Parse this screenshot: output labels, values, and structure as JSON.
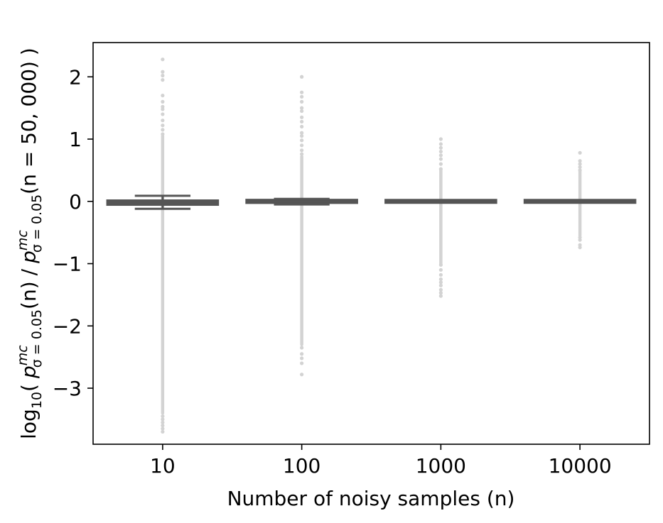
{
  "chart_data": {
    "type": "boxplot",
    "xlabel": "Number of noisy samples (n)",
    "ylabel": "log10( p^mc_{σ=0.05}(n) / p^mc_{σ=0.05}(n = 50, 000) )",
    "ylabel_parts": {
      "log": "log",
      "log_sub": "10",
      "open": "(",
      "p": "p",
      "p_sup": "mc",
      "p_sub": "σ = 0.05",
      "n_arg": "(n)",
      "slash": "/",
      "ref_arg": "(n = 50, 000)",
      "close": ")"
    },
    "categories": [
      "10",
      "100",
      "1000",
      "10000"
    ],
    "ylim": [
      -3.9,
      2.55
    ],
    "yticks": [
      2,
      1,
      0,
      -1,
      -2,
      -3
    ],
    "ytick_labels": [
      "2",
      "1",
      "0",
      "−1",
      "−2",
      "−3"
    ],
    "grid": false,
    "colors": {
      "box": "#555555",
      "outlier": "#d3d3d3",
      "axis": "#000000"
    },
    "boxes": [
      {
        "category": "10",
        "q1": -0.06,
        "median": -0.02,
        "q3": 0.02,
        "whisker_low": -0.12,
        "whisker_high": 0.09,
        "outlier_min": -3.7,
        "outlier_max": 2.28
      },
      {
        "category": "100",
        "q1": -0.03,
        "median": 0.0,
        "q3": 0.03,
        "whisker_low": -0.05,
        "whisker_high": 0.04,
        "outlier_min": -2.78,
        "outlier_max": 2.0
      },
      {
        "category": "1000",
        "q1": -0.01,
        "median": 0.0,
        "q3": 0.01,
        "whisker_low": -0.02,
        "whisker_high": 0.02,
        "outlier_min": -1.52,
        "outlier_max": 1.0
      },
      {
        "category": "10000",
        "q1": -0.005,
        "median": 0.0,
        "q3": 0.005,
        "whisker_low": -0.01,
        "whisker_high": 0.01,
        "outlier_min": -0.74,
        "outlier_max": 0.78
      }
    ],
    "outlier_points": [
      [
        2.28,
        2.08,
        2.02,
        1.95,
        1.7,
        1.6,
        1.52,
        1.48,
        1.4,
        1.3,
        1.22,
        1.15,
        1.08,
        -3.45,
        -3.5,
        -3.55,
        -3.6,
        -3.65,
        -3.7
      ],
      [
        2.0,
        1.75,
        1.68,
        1.6,
        1.5,
        1.45,
        1.35,
        1.28,
        1.2,
        1.1,
        1.05,
        0.98,
        0.9,
        0.82,
        0.76,
        -2.35,
        -2.45,
        -2.52,
        -2.6,
        -2.78
      ],
      [
        1.0,
        0.92,
        0.86,
        0.8,
        0.74,
        0.68,
        0.6,
        0.52,
        -1.02,
        -1.1,
        -1.18,
        -1.25,
        -1.3,
        -1.35,
        -1.42,
        -1.47,
        -1.52
      ],
      [
        0.78,
        0.65,
        0.6,
        0.55,
        0.5,
        -0.58,
        -0.62,
        -0.7,
        -0.74
      ]
    ],
    "dense_ranges": [
      [
        -3.4,
        1.05
      ],
      [
        -2.3,
        0.72
      ],
      [
        -1.0,
        0.5
      ],
      [
        -0.55,
        0.48
      ]
    ]
  }
}
